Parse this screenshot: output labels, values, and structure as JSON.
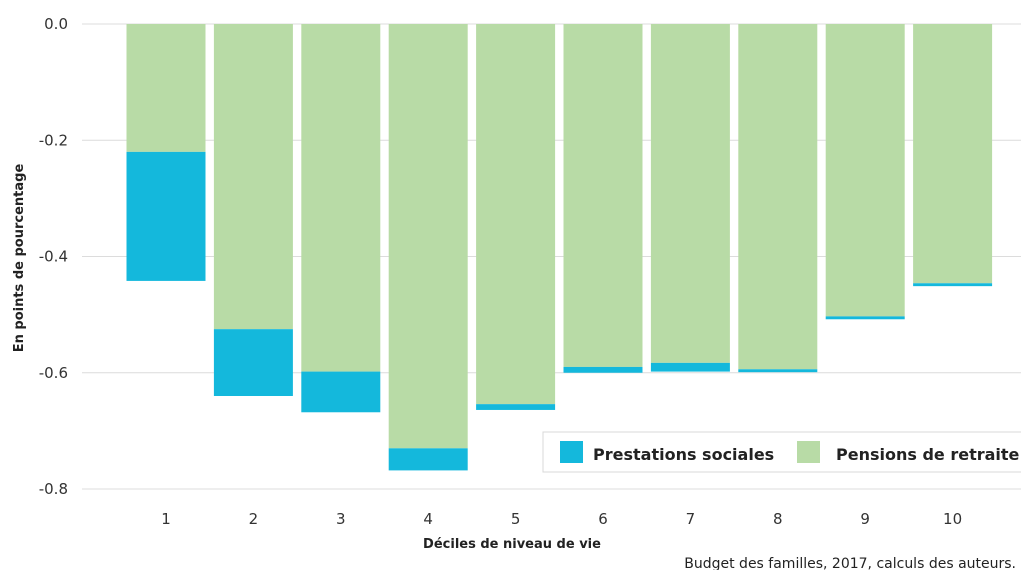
{
  "chart_data": {
    "type": "bar",
    "stacked": true,
    "xlabel": "Déciles de niveau de vie",
    "ylabel": "En points de pourcentage",
    "categories": [
      "1",
      "2",
      "3",
      "4",
      "5",
      "6",
      "7",
      "8",
      "9",
      "10"
    ],
    "ylim": [
      -0.8,
      0.0
    ],
    "yticks": [
      "0.0",
      "-0.2",
      "-0.4",
      "-0.6",
      "-0.8"
    ],
    "ytick_values": [
      0.0,
      -0.2,
      -0.4,
      -0.6,
      -0.8
    ],
    "grid": true,
    "legend_position": "bottom-right",
    "series": [
      {
        "name": "Pensions de retraite",
        "color": "#b8dba6",
        "values": [
          -0.22,
          -0.525,
          -0.598,
          -0.73,
          -0.654,
          -0.59,
          -0.583,
          -0.594,
          -0.503,
          -0.446
        ]
      },
      {
        "name": "Prestations sociales",
        "color": "#14b8dc",
        "values": [
          -0.222,
          -0.115,
          -0.07,
          -0.038,
          -0.01,
          -0.01,
          -0.015,
          -0.005,
          -0.005,
          -0.005
        ]
      }
    ],
    "legend_order": [
      "Prestations sociales",
      "Pensions de retraite"
    ],
    "source": "Budget des familles, 2017, calculs des auteurs."
  }
}
